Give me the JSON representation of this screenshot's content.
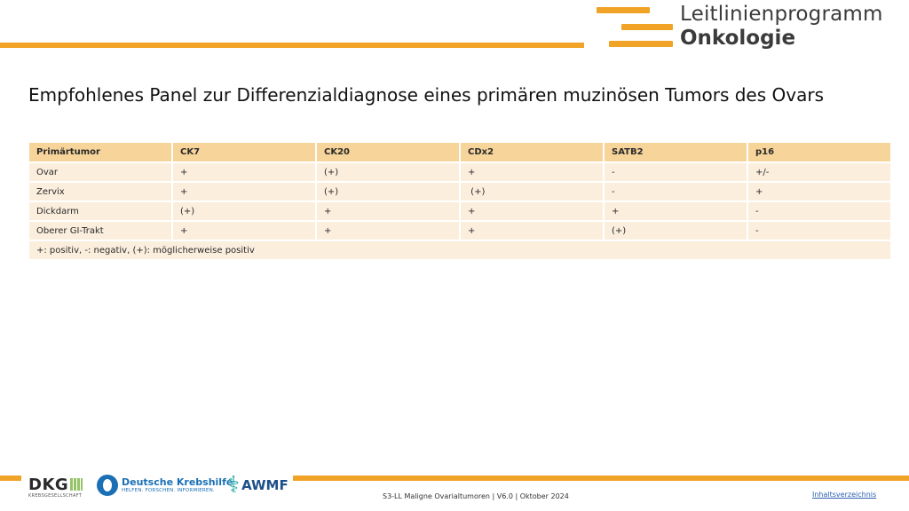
{
  "header": {
    "brand_line1": "Leitlinienprogramm",
    "brand_line2": "Onkologie",
    "accent_color": "#f0a326"
  },
  "title": "Empfohlenes Panel zur Differenzialdiagnose eines primären muzinösen Tumors des Ovars",
  "table": {
    "columns": [
      "Primärtumor",
      "CK7",
      "CK20",
      "CDx2",
      "SATB2",
      "p16"
    ],
    "rows": [
      [
        "Ovar",
        "+",
        "(+)",
        "+",
        "-",
        "+/-"
      ],
      [
        "Zervix",
        "+",
        "(+)",
        " (+)",
        "-",
        "+"
      ],
      [
        "Dickdarm",
        "(+)",
        "+",
        "+",
        "+",
        "-"
      ],
      [
        "Oberer GI-Trakt",
        "+",
        "+",
        "+",
        "(+)",
        "-"
      ]
    ],
    "legend": "+: positiv, -: negativ, (+): möglicherweise positiv"
  },
  "footer": {
    "logos": {
      "dkg_main": "DKG",
      "dkg_sub": "KREBSGESELLSCHAFT",
      "krebshilfe_name": "Deutsche Krebshilfe",
      "krebshilfe_tag": "HELFEN. FORSCHEN. INFORMIEREN.",
      "awmf_name": "AWMF"
    },
    "text": "S3-LL Maligne Ovarialtumoren | V6.0 | Oktober 2024",
    "toc_link": "Inhaltsverzeichnis"
  }
}
